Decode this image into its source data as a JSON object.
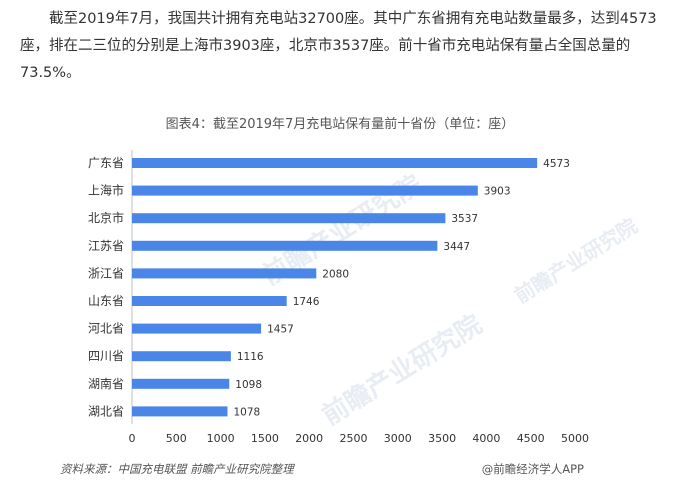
{
  "article": {
    "paragraph": "截至2019年7月，我国共计拥有充电站32700座。其中广东省拥有充电站数量最多，达到4573座，排在二三位的分别是上海市3903座，北京市3537座。前十省市充电站保有量占全国总量的73.5%。"
  },
  "chart_data": {
    "type": "bar",
    "orientation": "horizontal",
    "title": "图表4：截至2019年7月充电站保有量前十省份（单位：座）",
    "categories": [
      "广东省",
      "上海市",
      "北京市",
      "江苏省",
      "浙江省",
      "山东省",
      "河北省",
      "四川省",
      "湖南省",
      "湖北省"
    ],
    "values": [
      4573,
      3903,
      3537,
      3447,
      2080,
      1746,
      1457,
      1116,
      1098,
      1078
    ],
    "xlim": [
      0,
      5000
    ],
    "xticks": [
      0,
      500,
      1000,
      1500,
      2000,
      2500,
      3000,
      3500,
      4000,
      4500,
      5000
    ],
    "bar_color": "#4a86e8",
    "data_labels": true,
    "grid": false
  },
  "footer": {
    "source": "资料来源：中国充电联盟 前瞻产业研究院整理",
    "brand": "@前瞻经济学人APP"
  },
  "watermark_text": "前瞻产业研究院"
}
